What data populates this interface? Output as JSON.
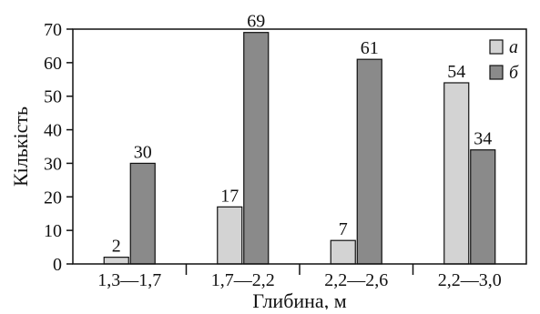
{
  "chart_data": {
    "type": "bar",
    "categories": [
      "1,3—1,7",
      "1,7—2,2",
      "2,2—2,6",
      "2,2—3,0"
    ],
    "series": [
      {
        "name": "а",
        "values": [
          2,
          17,
          7,
          54
        ],
        "color": "#d3d3d3"
      },
      {
        "name": "б",
        "values": [
          30,
          69,
          61,
          34
        ],
        "color": "#8a8a8a"
      }
    ],
    "data_labels": [
      [
        "2",
        "17",
        "7",
        "54"
      ],
      [
        "30",
        "69",
        "61",
        "34"
      ]
    ],
    "xlabel": "Глибина, м",
    "ylabel": "Кількість",
    "ylim": [
      0,
      70
    ],
    "yticks": [
      0,
      10,
      20,
      30,
      40,
      50,
      60,
      70
    ],
    "grid": false,
    "legend_position": "top-right"
  }
}
